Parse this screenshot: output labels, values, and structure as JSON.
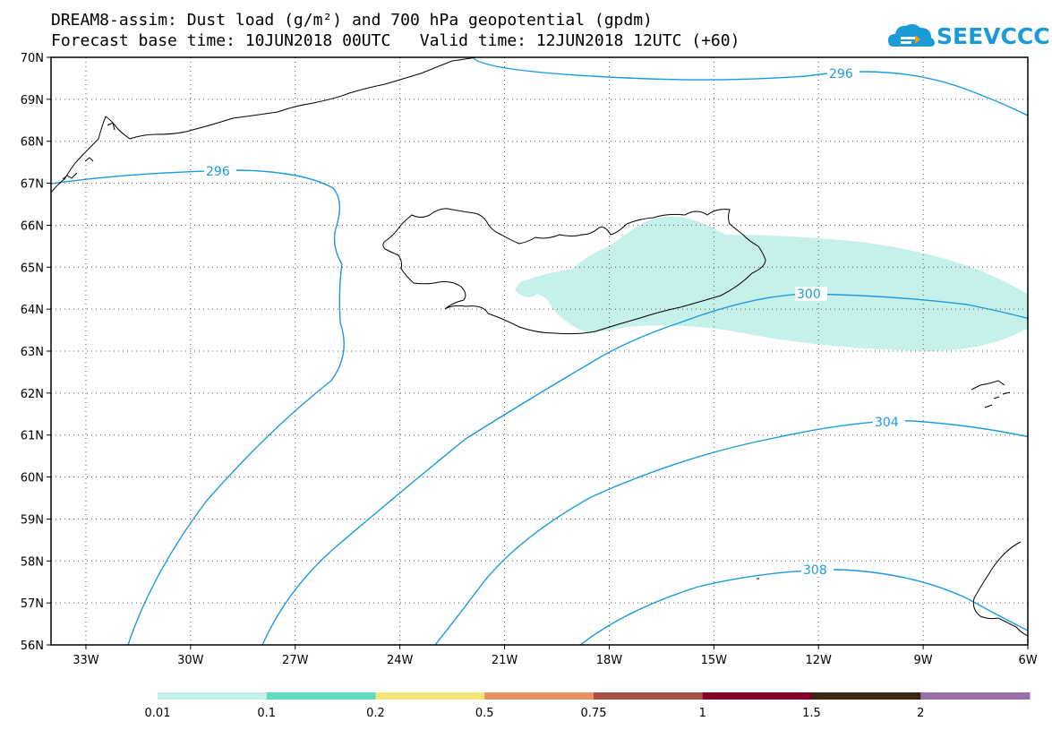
{
  "header": {
    "line1": "DREAM8-assim: Dust load (g/m²) and 700 hPa geopotential (gpdm)",
    "line2": "Forecast base time: 10JUN2018 00UTC   Valid time: 12JUN2018 12UTC (+60)"
  },
  "logo": {
    "text": "SEEVCCC"
  },
  "map": {
    "lon_labels": [
      "33W",
      "30W",
      "27W",
      "24W",
      "21W",
      "18W",
      "15W",
      "12W",
      "9W",
      "6W"
    ],
    "lat_labels": [
      "70N",
      "69N",
      "68N",
      "67N",
      "66N",
      "65N",
      "64N",
      "63N",
      "62N",
      "61N",
      "60N",
      "59N",
      "58N",
      "57N",
      "56N"
    ],
    "contour_labels": [
      "296",
      "296",
      "300",
      "304",
      "308"
    ],
    "contour_color": "#1a9be0",
    "dust_color": "#c6f0ea"
  },
  "colorbar": {
    "labels": [
      "0.01",
      "0.1",
      "0.2",
      "0.5",
      "0.75",
      "1",
      "1.5",
      "2"
    ],
    "colors": [
      "#c6f0ea",
      "#5cdcbc",
      "#f5e57a",
      "#e89060",
      "#a85048",
      "#880028",
      "#3e2614",
      "#9a70a8"
    ]
  }
}
